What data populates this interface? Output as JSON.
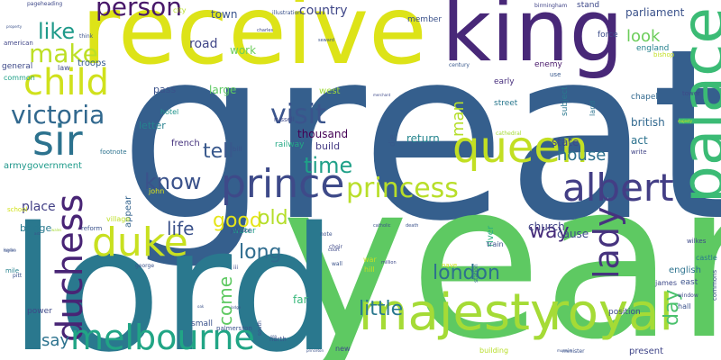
{
  "words": [
    {
      "text": "great",
      "color": "#355f8d"
    },
    {
      "text": "year",
      "color": "#5ec962"
    },
    {
      "text": "lord",
      "color": "#2a788e"
    },
    {
      "text": "receive",
      "color": "#dde318"
    },
    {
      "text": "king",
      "color": "#482878"
    },
    {
      "text": "palace",
      "color": "#3bbb75"
    },
    {
      "text": "majesty",
      "color": "#a5db36"
    },
    {
      "text": "royal",
      "color": "#a5db36"
    },
    {
      "text": "queen",
      "color": "#c2df23"
    },
    {
      "text": "prince",
      "color": "#3e4a89"
    },
    {
      "text": "duke",
      "color": "#c8e020"
    },
    {
      "text": "duchess",
      "color": "#482475"
    },
    {
      "text": "albert",
      "color": "#433e85"
    },
    {
      "text": "sir",
      "color": "#2c728e"
    },
    {
      "text": "child",
      "color": "#d0e11c"
    },
    {
      "text": "melbourne",
      "color": "#21a585"
    },
    {
      "text": "lady",
      "color": "#46337e"
    },
    {
      "text": "victoria",
      "color": "#31688e"
    },
    {
      "text": "princess",
      "color": "#b8de29"
    },
    {
      "text": "person",
      "color": "#48186a"
    },
    {
      "text": "visit",
      "color": "#3a548c"
    },
    {
      "text": "make",
      "color": "#bddf26"
    },
    {
      "text": "like",
      "color": "#1f9a8a"
    },
    {
      "text": "time",
      "color": "#1fa088"
    },
    {
      "text": "know",
      "color": "#3b528b"
    },
    {
      "text": "tell",
      "color": "#38588c"
    },
    {
      "text": "good",
      "color": "#e5e419"
    },
    {
      "text": "long",
      "color": "#2f6c8e"
    },
    {
      "text": "old",
      "color": "#b5de2b"
    },
    {
      "text": "london",
      "color": "#2d708e"
    },
    {
      "text": "little",
      "color": "#2a788e"
    },
    {
      "text": "way",
      "color": "#472d7b"
    },
    {
      "text": "day",
      "color": "#4ac16d"
    },
    {
      "text": "life",
      "color": "#3b528b"
    },
    {
      "text": "come",
      "color": "#5ec962"
    },
    {
      "text": "say",
      "color": "#2c728e"
    },
    {
      "text": "look",
      "color": "#6ccd5a"
    },
    {
      "text": "man",
      "color": "#b5de2b"
    },
    {
      "text": "house",
      "color": "#2d708e"
    },
    {
      "text": "country",
      "color": "#3f4788"
    },
    {
      "text": "parliament",
      "color": "#3b528b"
    },
    {
      "text": "town",
      "color": "#3a548c"
    },
    {
      "text": "road",
      "color": "#404688"
    },
    {
      "text": "work",
      "color": "#6ccd5a"
    },
    {
      "text": "place",
      "color": "#424086"
    },
    {
      "text": "thousand",
      "color": "#440154"
    },
    {
      "text": "build",
      "color": "#443a83"
    },
    {
      "text": "return",
      "color": "#25858e"
    },
    {
      "text": "state",
      "color": "#3e4989"
    },
    {
      "text": "act",
      "color": "#2c728e"
    },
    {
      "text": "british",
      "color": "#31688e"
    },
    {
      "text": "church",
      "color": "#414487"
    },
    {
      "text": "cause",
      "color": "#3e4a89"
    },
    {
      "text": "english",
      "color": "#2c728e"
    },
    {
      "text": "large",
      "color": "#5ec962"
    },
    {
      "text": "pass",
      "color": "#3b528b"
    },
    {
      "text": "letter",
      "color": "#26818e"
    },
    {
      "text": "french",
      "color": "#46337e"
    },
    {
      "text": "appear",
      "color": "#33638d"
    },
    {
      "text": "bridge",
      "color": "#29798e"
    },
    {
      "text": "government",
      "color": "#1e9b8a"
    },
    {
      "text": "army",
      "color": "#1f968b"
    },
    {
      "text": "troops",
      "color": "#365c8d"
    },
    {
      "text": "early",
      "color": "#472f7d"
    },
    {
      "text": "enemy",
      "color": "#48186a"
    },
    {
      "text": "force",
      "color": "#3d4e8a"
    },
    {
      "text": "england",
      "color": "#26828e"
    },
    {
      "text": "member",
      "color": "#3b528b"
    },
    {
      "text": "stand",
      "color": "#3e4989"
    },
    {
      "text": "street",
      "color": "#2a788e"
    },
    {
      "text": "east",
      "color": "#3b528b"
    },
    {
      "text": "james",
      "color": "#3e4989"
    },
    {
      "text": "hall",
      "color": "#3b528b"
    },
    {
      "text": "present",
      "color": "#404688"
    },
    {
      "text": "position",
      "color": "#3e4989"
    },
    {
      "text": "small",
      "color": "#3b528b"
    },
    {
      "text": "water",
      "color": "#1f9e89"
    },
    {
      "text": "far",
      "color": "#35b779"
    },
    {
      "text": "river",
      "color": "#29af7f"
    },
    {
      "text": "train",
      "color": "#3b528b"
    },
    {
      "text": "west",
      "color": "#9fda3a"
    },
    {
      "text": "hotel",
      "color": "#1f948c"
    },
    {
      "text": "russell",
      "color": "#3e4989"
    },
    {
      "text": "railway",
      "color": "#22a884"
    },
    {
      "text": "die",
      "color": "#38588c"
    },
    {
      "text": "subject",
      "color": "#2a788e"
    },
    {
      "text": "land",
      "color": "#2c728e"
    },
    {
      "text": "chapel",
      "color": "#31688e"
    },
    {
      "text": "tower",
      "color": "#3e4989"
    },
    {
      "text": "write",
      "color": "#414487"
    },
    {
      "text": "power",
      "color": "#3e4989"
    },
    {
      "text": "mile",
      "color": "#26828e"
    },
    {
      "text": "reform",
      "color": "#3b528b"
    },
    {
      "text": "village",
      "color": "#bddf26"
    },
    {
      "text": "school",
      "color": "#d2e21b"
    },
    {
      "text": "law",
      "color": "#3e4989"
    },
    {
      "text": "general",
      "color": "#3e4989"
    },
    {
      "text": "common",
      "color": "#1fa188"
    },
    {
      "text": "american",
      "color": "#404688"
    },
    {
      "text": "pageheading",
      "color": "#3e4989"
    },
    {
      "text": "city",
      "color": "#b8de29"
    },
    {
      "text": "illustration",
      "color": "#3b528b"
    },
    {
      "text": "birmingham",
      "color": "#414487"
    },
    {
      "text": "century",
      "color": "#38588c"
    },
    {
      "text": "use",
      "color": "#38588c"
    },
    {
      "text": "bishop",
      "color": "#c2df23"
    },
    {
      "text": "think",
      "color": "#3b528b"
    },
    {
      "text": "charles",
      "color": "#3e4989"
    },
    {
      "text": "seward",
      "color": "#3b528b"
    },
    {
      "text": "footnote",
      "color": "#2c728e"
    },
    {
      "text": "john",
      "color": "#dde318"
    },
    {
      "text": "bill",
      "color": "#3b528b"
    },
    {
      "text": "johnson",
      "color": "#3e4989"
    },
    {
      "text": "note",
      "color": "#3b528b"
    },
    {
      "text": "choir",
      "color": "#3e4989"
    },
    {
      "text": "wall",
      "color": "#3b528b"
    },
    {
      "text": "court",
      "color": "#3e4989"
    },
    {
      "text": "catholic",
      "color": "#3b528b"
    },
    {
      "text": "death",
      "color": "#3b528b"
    },
    {
      "text": "million",
      "color": "#3e4989"
    },
    {
      "text": "nave",
      "color": "#d2e21b"
    },
    {
      "text": "hill",
      "color": "#c2df23"
    },
    {
      "text": "war",
      "color": "#c2df23"
    },
    {
      "text": "station",
      "color": "#31688e"
    },
    {
      "text": "north",
      "color": "#3b528b"
    },
    {
      "text": "south",
      "color": "#3b528b"
    },
    {
      "text": "new",
      "color": "#3e4989"
    },
    {
      "text": "building",
      "color": "#b8de29"
    },
    {
      "text": "palmerston",
      "color": "#3b528b"
    },
    {
      "text": "george",
      "color": "#3b528b"
    },
    {
      "text": "iii",
      "color": "#3e4989"
    },
    {
      "text": "pitt",
      "color": "#3b528b"
    },
    {
      "text": "wilkes",
      "color": "#3e4989"
    },
    {
      "text": "castle",
      "color": "#29798e"
    },
    {
      "text": "commons",
      "color": "#3b528b"
    },
    {
      "text": "window",
      "color": "#3e4989"
    },
    {
      "text": "minister",
      "color": "#3b528b"
    },
    {
      "text": "cathedral",
      "color": "#a5db36"
    },
    {
      "text": "merchant",
      "color": "#3e4989"
    },
    {
      "text": "lodge",
      "color": "#3b528b"
    },
    {
      "text": "london",
      "color": "#3b528b"
    },
    {
      "text": "princeton",
      "color": "#3b528b"
    },
    {
      "text": "property",
      "color": "#3b528b"
    },
    {
      "text": "majesty",
      "color": "#d2e21b"
    },
    {
      "text": "ast",
      "color": "#3b528b"
    },
    {
      "text": "tagline",
      "color": "#3b528b"
    },
    {
      "text": "oak",
      "color": "#3b528b"
    },
    {
      "text": "wales",
      "color": "#a5db36"
    },
    {
      "text": "sea",
      "color": "#3b528b"
    },
    {
      "text": "museum",
      "color": "#3b528b"
    },
    {
      "text": "canal",
      "color": "#3b528b"
    }
  ]
}
